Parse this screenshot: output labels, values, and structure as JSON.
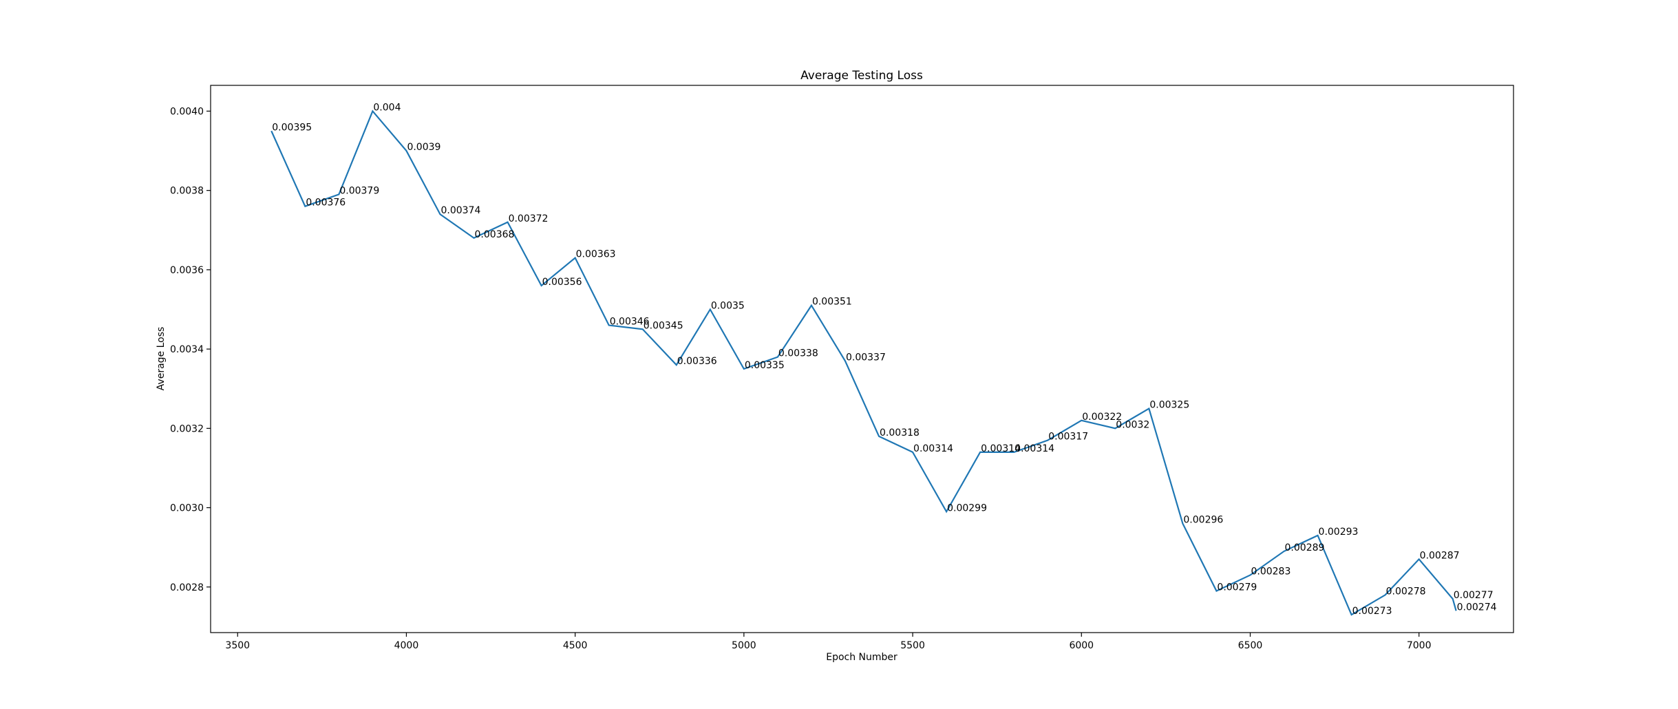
{
  "chart_data": {
    "type": "line",
    "title": "Average Testing Loss",
    "xlabel": "Epoch Number",
    "ylabel": "Average Loss",
    "xlim": [
      3420,
      7280
    ],
    "ylim": [
      0.002685,
      0.004065
    ],
    "x_ticks": [
      3500,
      4000,
      4500,
      5000,
      5500,
      6000,
      6500,
      7000
    ],
    "x_tick_labels": [
      "3500",
      "4000",
      "4500",
      "5000",
      "5500",
      "6000",
      "6500",
      "7000"
    ],
    "y_ticks": [
      0.0028,
      0.003,
      0.0032,
      0.0034,
      0.0036,
      0.0038,
      0.004
    ],
    "y_tick_labels": [
      "0.0028",
      "0.0030",
      "0.0032",
      "0.0034",
      "0.0036",
      "0.0038",
      "0.0040"
    ],
    "grid": false,
    "line_color": "#1f77b4",
    "series": [
      {
        "x": [
          3600,
          3700,
          3800,
          3900,
          4000,
          4100,
          4200,
          4300,
          4400,
          4500,
          4600,
          4700,
          4800,
          4900,
          5000,
          5100,
          5200,
          5300,
          5400,
          5500,
          5600,
          5700,
          5800,
          5900,
          6000,
          6100,
          6200,
          6300,
          6400,
          6500,
          6600,
          6700,
          6800,
          6900,
          7000,
          7100,
          7110
        ],
        "values": [
          0.00395,
          0.00376,
          0.00379,
          0.004,
          0.0039,
          0.00374,
          0.00368,
          0.00372,
          0.00356,
          0.00363,
          0.00346,
          0.00345,
          0.00336,
          0.0035,
          0.00335,
          0.00338,
          0.00351,
          0.00337,
          0.00318,
          0.00314,
          0.00299,
          0.00314,
          0.00314,
          0.00317,
          0.00322,
          0.0032,
          0.00325,
          0.00296,
          0.00279,
          0.00283,
          0.00289,
          0.00293,
          0.00273,
          0.00278,
          0.00287,
          0.00277,
          0.00274
        ],
        "labels": [
          "0.00395",
          "0.00376",
          "0.00379",
          "0.004",
          "0.0039",
          "0.00374",
          "0.00368",
          "0.00372",
          "0.00356",
          "0.00363",
          "0.00346",
          "0.00345",
          "0.00336",
          "0.0035",
          "0.00335",
          "0.00338",
          "0.00351",
          "0.00337",
          "0.00318",
          "0.00314",
          "0.00299",
          "0.00314",
          "0.00314",
          "0.00317",
          "0.00322",
          "0.0032",
          "0.00325",
          "0.00296",
          "0.00279",
          "0.00283",
          "0.00289",
          "0.00293",
          "0.00273",
          "0.00278",
          "0.00287",
          "0.00277",
          "0.00274"
        ]
      }
    ]
  }
}
